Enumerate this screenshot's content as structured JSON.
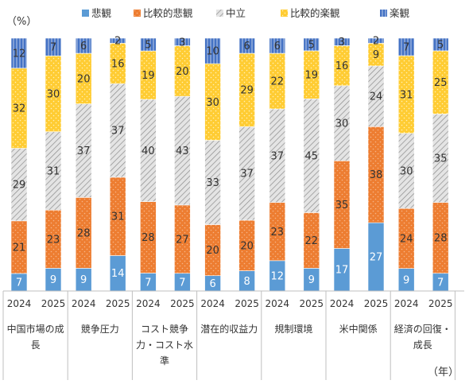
{
  "chart_data": {
    "type": "bar",
    "stacked": true,
    "percent": true,
    "unit_label": "（%）",
    "x_unit_label": "（年）",
    "groups": [
      "中国市場の成長",
      "競争圧力",
      "コスト競争力・コスト水準",
      "潜在的収益力",
      "規制環境",
      "米中関係",
      "経済の回復・成長"
    ],
    "group_label_lines": [
      [
        "中国市場の成",
        "長"
      ],
      [
        "競争圧力"
      ],
      [
        "コスト競争",
        "力・コスト水",
        "準"
      ],
      [
        "潜在的収益力"
      ],
      [
        "規制環境"
      ],
      [
        "米中関係"
      ],
      [
        "経済の回復・",
        "成長"
      ]
    ],
    "years": [
      "2024",
      "2025"
    ],
    "series": [
      {
        "name": "悲観",
        "color": "#5b9bd5",
        "pattern": "none",
        "values": [
          7,
          9,
          9,
          14,
          7,
          7,
          6,
          8,
          12,
          9,
          17,
          27,
          9,
          7
        ]
      },
      {
        "name": "比較的悲観",
        "color": "#ed7d31",
        "pattern": "dots",
        "values": [
          21,
          23,
          28,
          31,
          28,
          27,
          20,
          20,
          23,
          22,
          35,
          38,
          24,
          28
        ]
      },
      {
        "name": "中立",
        "color": "#d6d6d6",
        "pattern": "diagonal",
        "values": [
          29,
          31,
          37,
          37,
          40,
          43,
          33,
          37,
          37,
          45,
          30,
          24,
          30,
          35
        ]
      },
      {
        "name": "比較的楽観",
        "color": "#ffcc33",
        "pattern": "dots",
        "values": [
          32,
          30,
          20,
          16,
          19,
          20,
          30,
          29,
          22,
          19,
          16,
          9,
          31,
          25
        ]
      },
      {
        "name": "楽観",
        "color": "#4472c4",
        "pattern": "vlines",
        "values": [
          12,
          7,
          6,
          2,
          5,
          3,
          10,
          6,
          6,
          5,
          3,
          2,
          7,
          5
        ]
      }
    ],
    "legend_position": "top",
    "grid": false
  }
}
